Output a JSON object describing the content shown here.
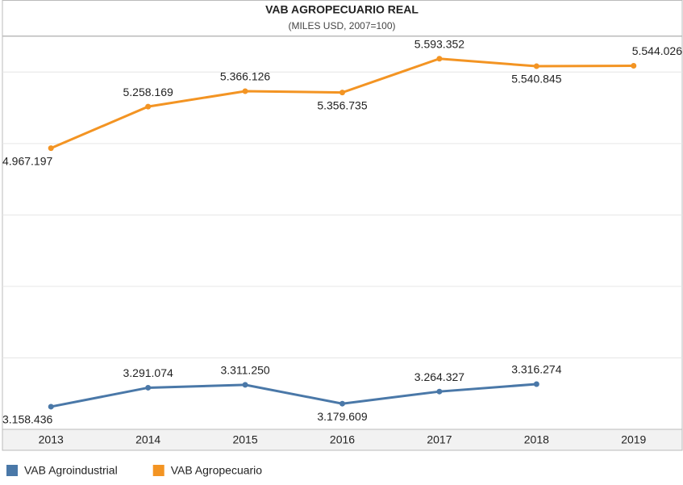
{
  "chart_data": {
    "type": "line",
    "title": "VAB AGROPECUARIO REAL",
    "subtitle": "(MILES USD, 2007=100)",
    "categories": [
      "2013",
      "2014",
      "2015",
      "2016",
      "2017",
      "2018",
      "2019"
    ],
    "series": [
      {
        "name": "VAB Agroindustrial",
        "color": "#4a78a8",
        "values": [
          3158436,
          3291074,
          3311250,
          3179609,
          3264327,
          3316274,
          null
        ],
        "value_labels": [
          "3.158.436",
          "3.291.074",
          "3.311.250",
          "3.179.609",
          "3.264.327",
          "3.316.274",
          null
        ]
      },
      {
        "name": "VAB Agropecuario",
        "color": "#f39423",
        "values": [
          4967197,
          5258169,
          5366126,
          5356735,
          5593352,
          5540845,
          5544026
        ],
        "value_labels": [
          "4.967.197",
          "5.258.169",
          "5.366.126",
          "5.356.735",
          "5.593.352",
          "5.540.845",
          "5.544.026"
        ]
      }
    ],
    "ylim": [
      3000000,
      5750000
    ],
    "yticks": [
      3500000,
      4000000,
      4500000,
      5000000,
      5500000
    ],
    "grid": true
  }
}
